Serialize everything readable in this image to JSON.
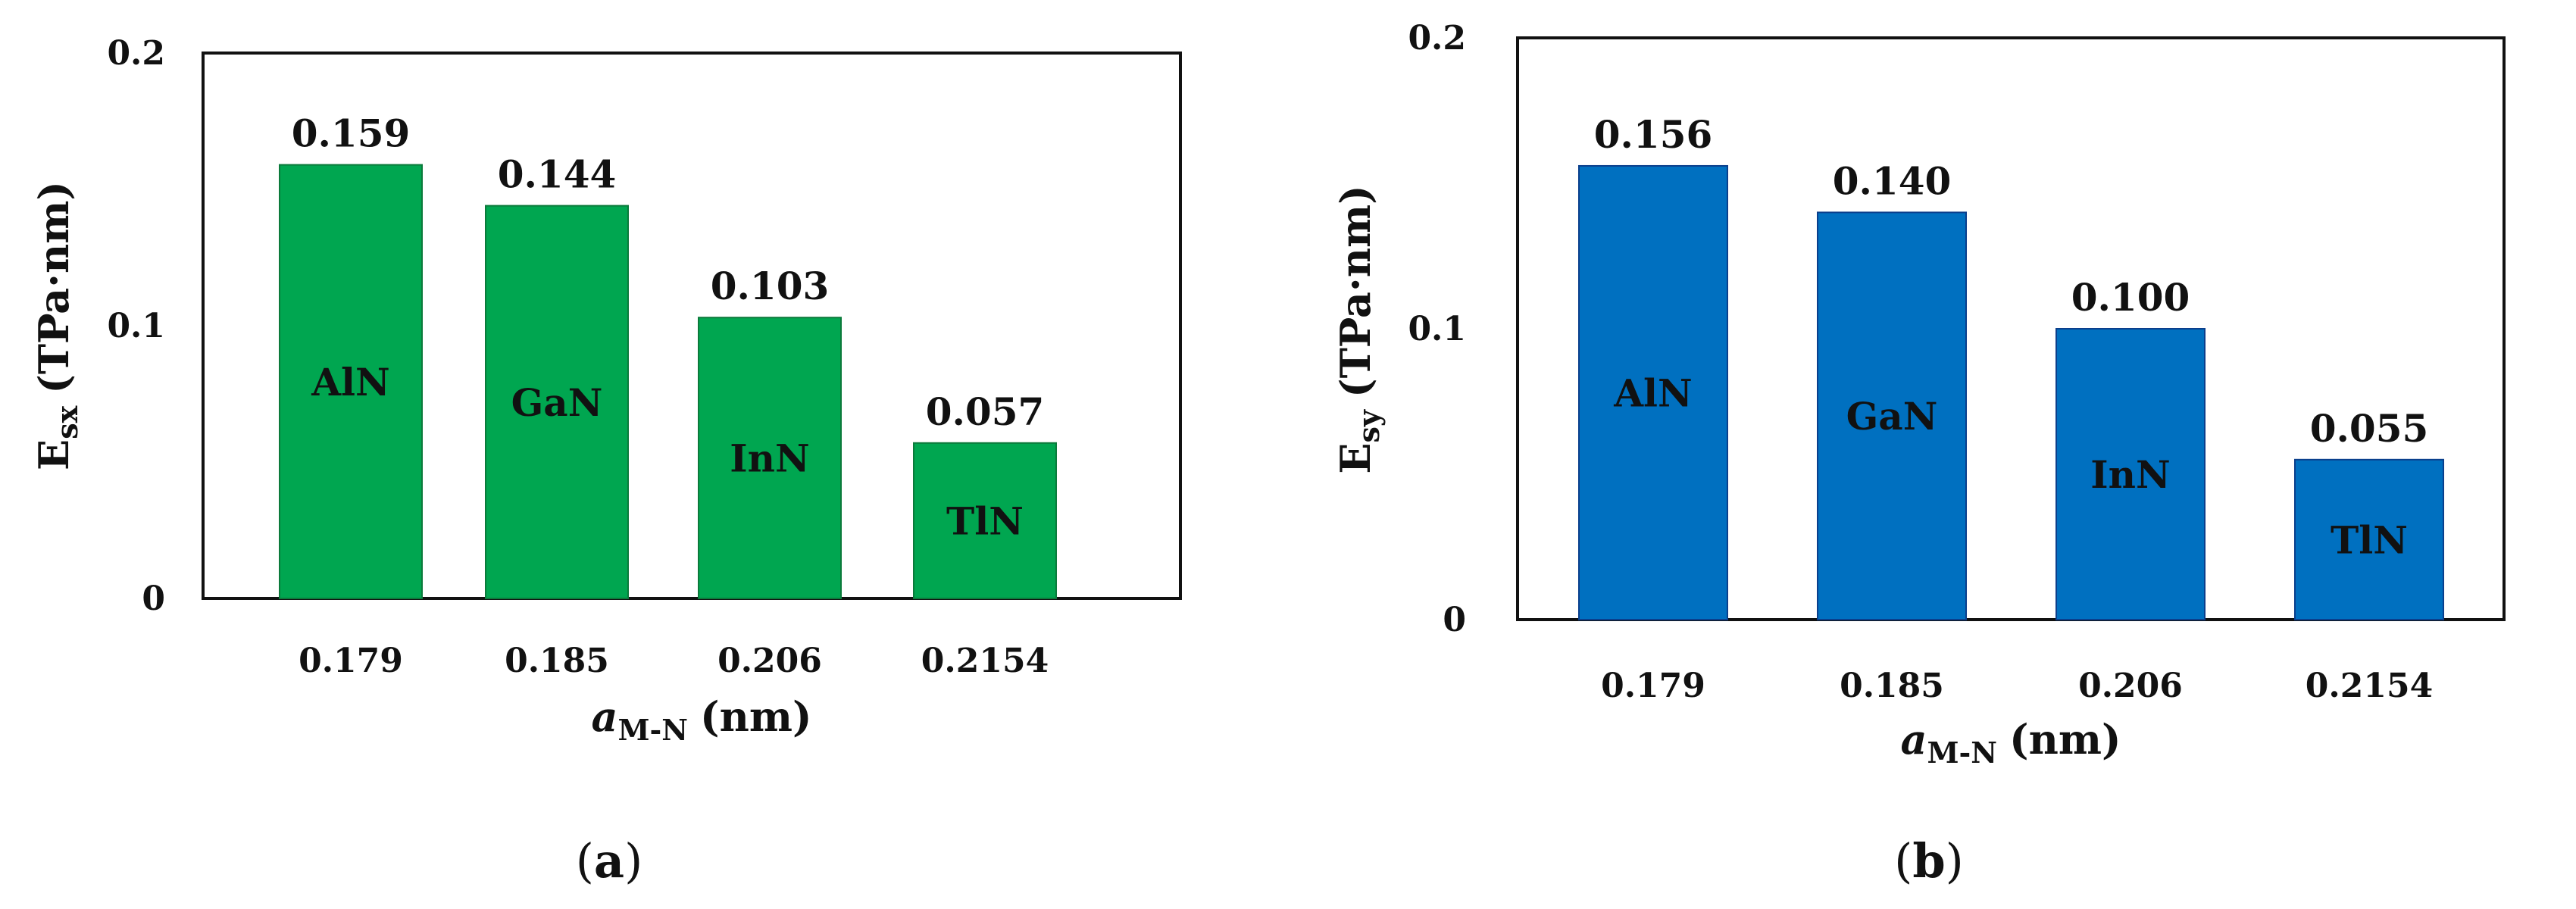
{
  "chart_data": [
    {
      "type": "bar",
      "panel_label": "a",
      "categories": [
        "0.179",
        "0.185",
        "0.206",
        "0.2154"
      ],
      "values": [
        0.159,
        0.144,
        0.103,
        0.057
      ],
      "value_labels": [
        "0.159",
        "0.144",
        "0.103",
        "0.057"
      ],
      "bar_labels": [
        "AlN",
        "GaN",
        "InN",
        "TlN"
      ],
      "xlabel": {
        "main": "a",
        "sub": "M-N",
        "unit": "(nm)"
      },
      "ylabel": {
        "main": "E",
        "sub": "sx",
        "unit": "(TPa·nm)"
      },
      "ylim": [
        0,
        0.2
      ],
      "yticks": [
        "0",
        "0.1",
        "0.2"
      ],
      "grid": false,
      "bar_color": "#00a650",
      "bar_edge_color": "#0b7a3b"
    },
    {
      "type": "bar",
      "panel_label": "b",
      "categories": [
        "0.179",
        "0.185",
        "0.206",
        "0.2154"
      ],
      "values": [
        0.156,
        0.14,
        0.1,
        0.055
      ],
      "value_labels": [
        "0.156",
        "0.140",
        "0.100",
        "0.055"
      ],
      "bar_labels": [
        "AlN",
        "GaN",
        "InN",
        "TlN"
      ],
      "xlabel": {
        "main": "a",
        "sub": "M-N",
        "unit": "(nm)"
      },
      "ylabel": {
        "main": "E",
        "sub": "sy",
        "unit": "(TPa·nm)"
      },
      "ylim": [
        0,
        0.2
      ],
      "yticks": [
        "0",
        "0.1",
        "0.2"
      ],
      "grid": false,
      "bar_color": "#0070c0",
      "bar_edge_color": "#0b3f8c"
    }
  ]
}
